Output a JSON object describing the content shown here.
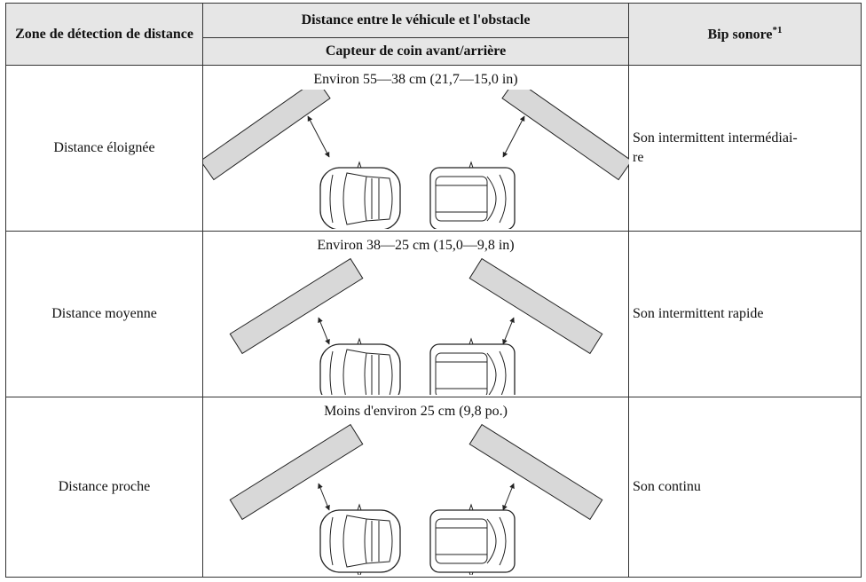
{
  "table": {
    "header": {
      "zone": "Zone de détection de distance",
      "distance": "Distance entre le véhicule et l'obstacle",
      "sensor": "Capteur de coin avant/arrière",
      "beep": "Bip sonore",
      "beep_note": "*1"
    },
    "rows": [
      {
        "zone": "Distance éloignée",
        "range": "Environ 55—38 cm (21,7—15,0 in)",
        "beep": [
          "Son intermittent intermédiai-",
          "re"
        ]
      },
      {
        "zone": "Distance moyenne",
        "range": "Environ 38—25 cm (15,0—9,8 in)",
        "beep": [
          "Son intermittent rapide"
        ]
      },
      {
        "zone": "Distance proche",
        "range": "Moins d'environ 25 cm (9,8 po.)",
        "beep": [
          "Son continu"
        ]
      }
    ]
  }
}
